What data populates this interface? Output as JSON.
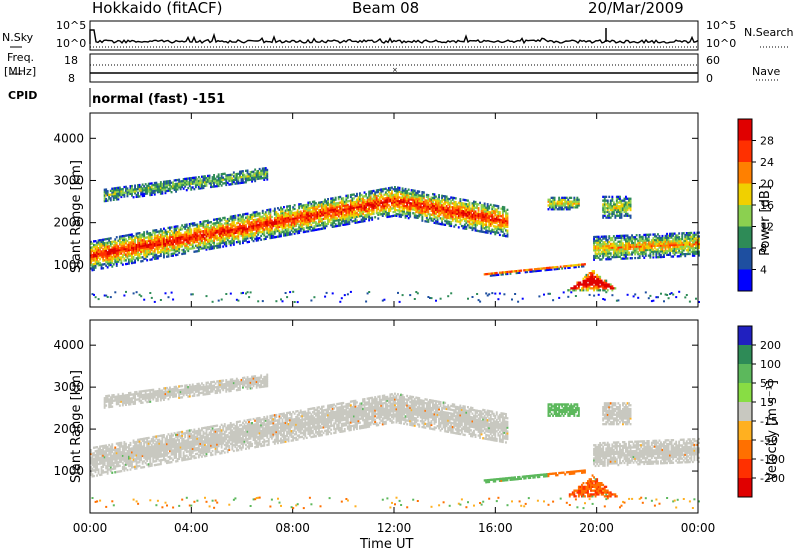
{
  "header": {
    "station": "Hokkaido (fitACF)",
    "beam": "Beam 08",
    "date": "20/Mar/2009"
  },
  "param_panel": {
    "nsky_label": "N.Sky",
    "nsearch_label": "N.Search",
    "nsky_tick_hi": "10^5",
    "nsky_tick_lo": "10^0",
    "freq_label_1": "Freq.",
    "freq_label_2": "[MHz]",
    "freq_tick_hi": "18",
    "freq_tick_lo": "8",
    "nave_label": "Nave",
    "nave_tick_hi": "60",
    "nave_tick_lo": "0",
    "cpid_label": "CPID",
    "cpid_value": "normal (fast) -151"
  },
  "chart_data": [
    {
      "type": "heatmap",
      "name": "power-panel",
      "ylabel": "Slant Range [km]",
      "ylim": [
        0,
        4600
      ],
      "yticks": [
        "1000",
        "2000",
        "3000",
        "4000"
      ],
      "xlim_hours": [
        0,
        24
      ],
      "colorbar_label": "Power [dB]",
      "colorbar_ticks": [
        "4",
        "8",
        "12",
        "16",
        "20",
        "24",
        "28"
      ],
      "colors": [
        "#0000ff",
        "#1e4fa0",
        "#2e8b57",
        "#8bd050",
        "#f0d000",
        "#ff8000",
        "#ff3000",
        "#e00000"
      ]
    },
    {
      "type": "heatmap",
      "name": "velocity-panel",
      "ylabel": "Slant Range [km]",
      "xlabel": "Time UT",
      "ylim": [
        0,
        4600
      ],
      "yticks": [
        "1000",
        "2000",
        "3000",
        "4000"
      ],
      "xticks": [
        "00:00",
        "04:00",
        "08:00",
        "12:00",
        "16:00",
        "20:00",
        "00:00"
      ],
      "xlim_hours": [
        0,
        24
      ],
      "colorbar_label": "Velocity [m s⁻¹]",
      "colorbar_ticks": [
        "200",
        "100",
        "50",
        "15",
        "-15",
        "-50",
        "-100",
        "-200"
      ],
      "colors": [
        "#2020c0",
        "#2e8b57",
        "#5cb85c",
        "#88dd44",
        "#c8c8c0",
        "#ffb020",
        "#ff7000",
        "#ff3000",
        "#e00000"
      ]
    }
  ]
}
